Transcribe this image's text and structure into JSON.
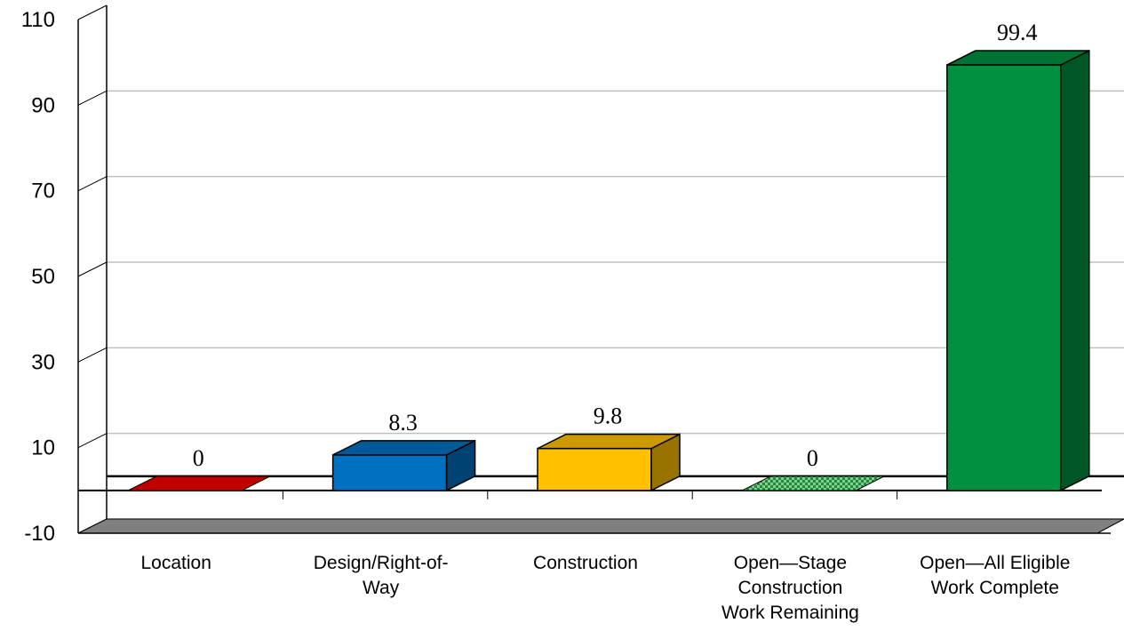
{
  "chart_data": {
    "type": "bar",
    "style": "3d",
    "categories": [
      "Location",
      "Design/Right-of-Way",
      "Construction",
      "Open—Stage Construction Work Remaining",
      "Open—All Eligible Work Complete"
    ],
    "category_lines": [
      [
        "Location"
      ],
      [
        "Design/Right-of-",
        "Way"
      ],
      [
        "Construction"
      ],
      [
        "Open—Stage",
        "Construction",
        "Work Remaining"
      ],
      [
        "Open—All Eligible",
        "Work Complete"
      ]
    ],
    "values": [
      0,
      8.3,
      9.8,
      0,
      99.4
    ],
    "data_labels": [
      "0",
      "8.3",
      "9.8",
      "0",
      "99.4"
    ],
    "colors": [
      "#c00000",
      "#0070c0",
      "#ffc000",
      "#1f8a3c",
      "#009040"
    ],
    "hatched": [
      false,
      false,
      false,
      true,
      false
    ],
    "yticks": [
      "110",
      "90",
      "70",
      "50",
      "30",
      "10",
      "-10"
    ],
    "ytick_values": [
      110,
      90,
      70,
      50,
      30,
      10,
      -10
    ],
    "ylim": [
      -10,
      110
    ],
    "grid": true,
    "title": "",
    "xlabel": "",
    "ylabel": ""
  }
}
